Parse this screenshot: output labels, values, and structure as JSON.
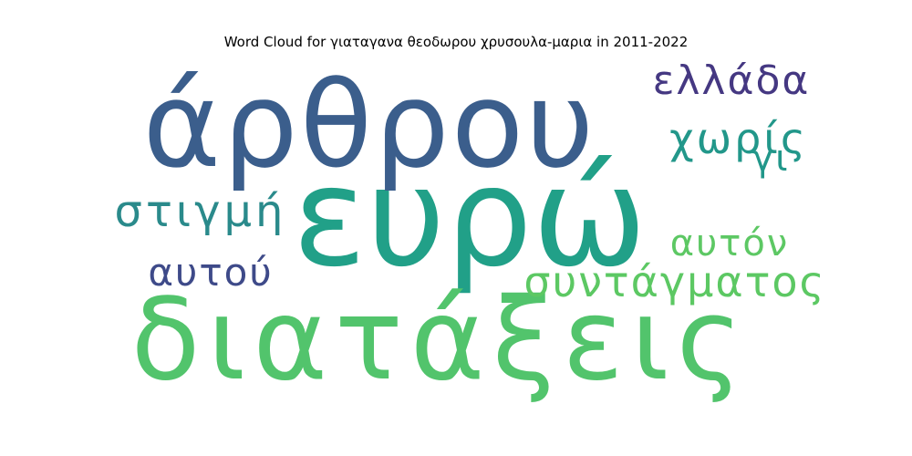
{
  "chart_data": {
    "type": "wordcloud",
    "title": "Word Cloud for γιαταγανα θεοδωρου χρυσουλα-μαρια in 2011-2022",
    "words": [
      {
        "text": "ευρώ",
        "weight": 100,
        "color": "#21a088",
        "orientation": "horizontal"
      },
      {
        "text": "άρθρου",
        "weight": 84,
        "color": "#3b5e8c",
        "orientation": "horizontal"
      },
      {
        "text": "διατάξεις",
        "weight": 82,
        "color": "#52c46c",
        "orientation": "horizontal"
      },
      {
        "text": "ελλάδα",
        "weight": 30,
        "color": "#453882",
        "orientation": "horizontal"
      },
      {
        "text": "χωρίς",
        "weight": 30,
        "color": "#22978a",
        "orientation": "horizontal"
      },
      {
        "text": "γι",
        "weight": 28,
        "color": "#22978a",
        "orientation": "horizontal"
      },
      {
        "text": "στιγμή",
        "weight": 30,
        "color": "#2a8a8b",
        "orientation": "horizontal"
      },
      {
        "text": "αυτόν",
        "weight": 29,
        "color": "#5dc864",
        "orientation": "horizontal"
      },
      {
        "text": "συντάγματος",
        "weight": 30,
        "color": "#5cc863",
        "orientation": "horizontal"
      },
      {
        "text": "αυτού",
        "weight": 29,
        "color": "#3e4a89",
        "orientation": "horizontal"
      }
    ]
  }
}
